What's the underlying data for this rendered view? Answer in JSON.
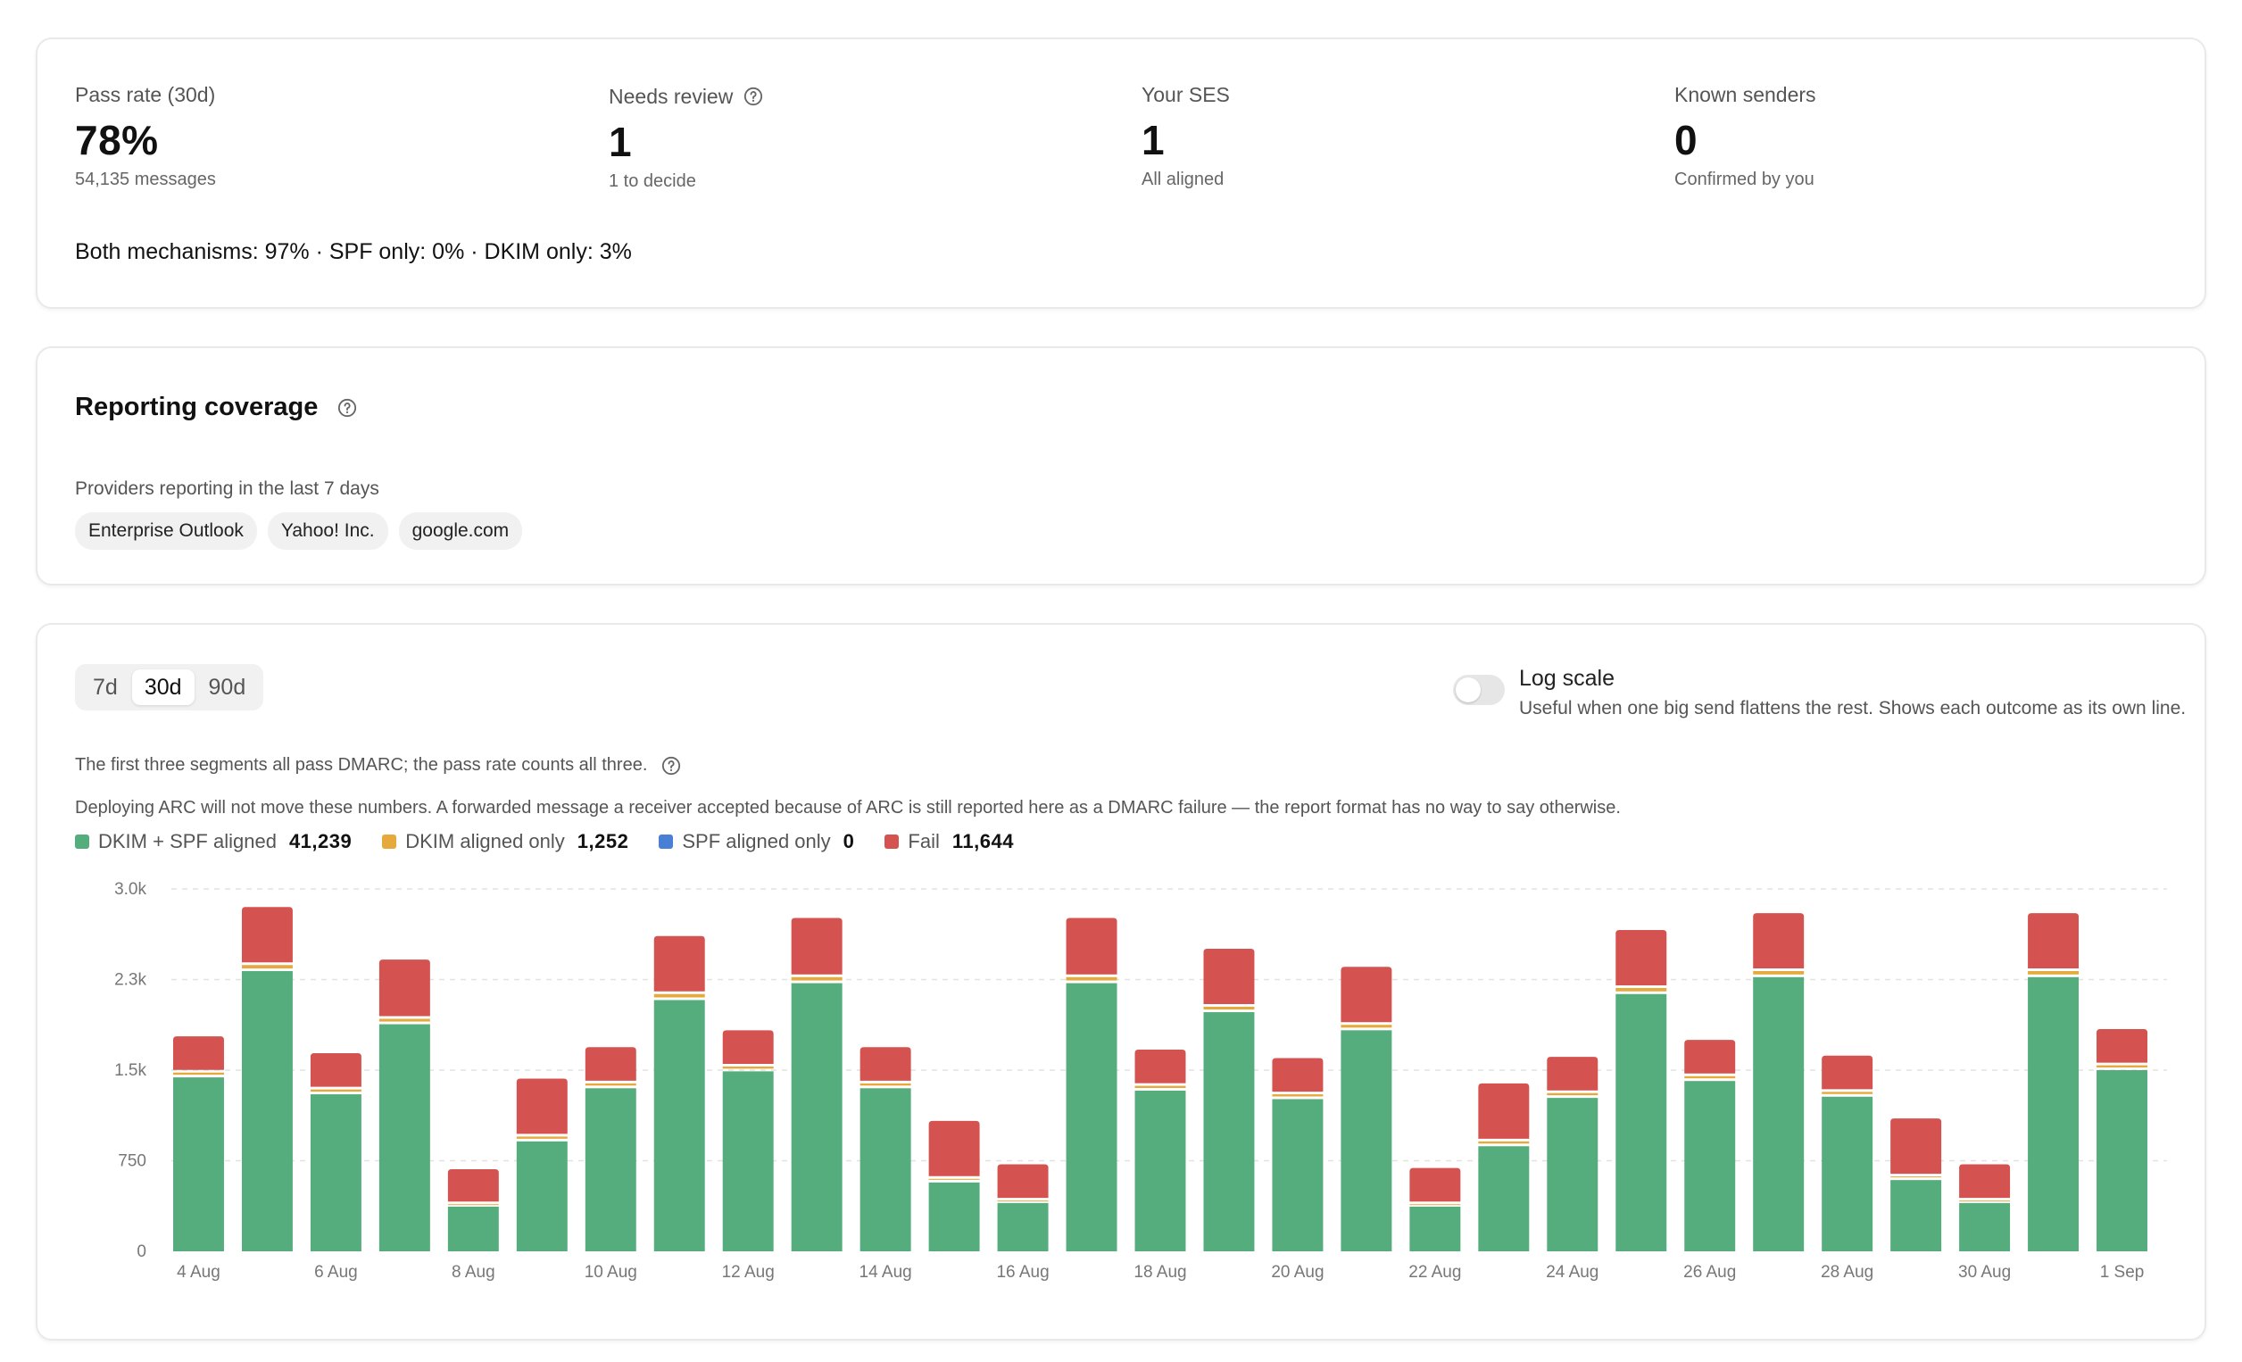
{
  "stats": [
    {
      "label": "Pass rate (30d)",
      "value": "78%",
      "sub": "54,135 messages",
      "help": false
    },
    {
      "label": "Needs review",
      "value": "1",
      "sub": "1 to decide",
      "help": true
    },
    {
      "label": "Your SES",
      "value": "1",
      "sub": "All aligned",
      "help": false
    },
    {
      "label": "Known senders",
      "value": "0",
      "sub": "Confirmed by you",
      "help": false
    }
  ],
  "mechanisms": "Both mechanisms: 97% · SPF only: 0% · DKIM only: 3%",
  "coverage": {
    "title": "Reporting coverage",
    "subtitle": "Providers reporting in the last 7 days",
    "providers": [
      "Enterprise Outlook",
      "Yahoo! Inc.",
      "google.com"
    ]
  },
  "range_options": [
    "7d",
    "30d",
    "90d"
  ],
  "range_selected": "30d",
  "log_scale": {
    "label": "Log scale",
    "description": "Useful when one big send flattens the rest. Shows each outcome as its own line.",
    "enabled": false
  },
  "notes": {
    "pass_segments": "The first three segments all pass DMARC; the pass rate counts all three.",
    "arc": "Deploying ARC will not move these numbers. A forwarded message a receiver accepted because of ARC is still reported here as a DMARC failure — the report format has no way to say otherwise."
  },
  "colors": {
    "both": "#55ad7d",
    "dkim_only": "#e6a93c",
    "spf_only": "#4a7fd6",
    "fail": "#d4524f"
  },
  "legend": [
    {
      "key": "both",
      "label": "DKIM + SPF aligned",
      "value": "41,239"
    },
    {
      "key": "dkim_only",
      "label": "DKIM aligned only",
      "value": "1,252"
    },
    {
      "key": "spf_only",
      "label": "SPF aligned only",
      "value": "0"
    },
    {
      "key": "fail",
      "label": "Fail",
      "value": "11,644"
    }
  ],
  "chart_data": {
    "type": "bar",
    "stacked": true,
    "ylim": [
      0,
      3000
    ],
    "yticks": [
      0,
      750,
      1500,
      2250,
      3000
    ],
    "ytick_labels": [
      "0",
      "750",
      "1.5k",
      "2.3k",
      "3.0k"
    ],
    "grid": true,
    "categories": [
      "4 Aug",
      "5 Aug",
      "6 Aug",
      "7 Aug",
      "8 Aug",
      "9 Aug",
      "10 Aug",
      "11 Aug",
      "12 Aug",
      "13 Aug",
      "14 Aug",
      "15 Aug",
      "16 Aug",
      "17 Aug",
      "18 Aug",
      "19 Aug",
      "20 Aug",
      "21 Aug",
      "22 Aug",
      "23 Aug",
      "24 Aug",
      "25 Aug",
      "26 Aug",
      "27 Aug",
      "28 Aug",
      "29 Aug",
      "30 Aug",
      "31 Aug",
      "1 Sep"
    ],
    "xtick_labels": [
      "4 Aug",
      "",
      "6 Aug",
      "",
      "8 Aug",
      "",
      "10 Aug",
      "",
      "12 Aug",
      "",
      "14 Aug",
      "",
      "16 Aug",
      "",
      "18 Aug",
      "",
      "20 Aug",
      "",
      "22 Aug",
      "",
      "24 Aug",
      "",
      "26 Aug",
      "",
      "28 Aug",
      "",
      "30 Aug",
      "",
      "1 Sep"
    ],
    "series": [
      {
        "name": "DKIM + SPF aligned",
        "key": "both",
        "values": [
          1440,
          2320,
          1300,
          1880,
          370,
          910,
          1350,
          2080,
          1490,
          2220,
          1350,
          570,
          400,
          2220,
          1330,
          1980,
          1260,
          1830,
          370,
          870,
          1270,
          2130,
          1410,
          2270,
          1280,
          590,
          400,
          2270,
          1500
        ]
      },
      {
        "name": "DKIM aligned only",
        "key": "dkim_only",
        "values": [
          40,
          50,
          40,
          45,
          20,
          40,
          40,
          50,
          40,
          50,
          40,
          30,
          20,
          50,
          40,
          45,
          40,
          45,
          20,
          40,
          40,
          50,
          40,
          50,
          40,
          30,
          20,
          50,
          40
        ]
      },
      {
        "name": "SPF aligned only",
        "key": "spf_only",
        "values": [
          0,
          0,
          0,
          0,
          0,
          0,
          0,
          0,
          0,
          0,
          0,
          0,
          0,
          0,
          0,
          0,
          0,
          0,
          0,
          0,
          0,
          0,
          0,
          0,
          0,
          0,
          0,
          0,
          0
        ]
      },
      {
        "name": "Fail",
        "key": "fail",
        "values": [
          300,
          480,
          300,
          490,
          290,
          480,
          300,
          480,
          300,
          490,
          300,
          480,
          300,
          490,
          300,
          480,
          300,
          480,
          300,
          480,
          300,
          480,
          300,
          480,
          300,
          480,
          300,
          480,
          300
        ]
      }
    ]
  }
}
